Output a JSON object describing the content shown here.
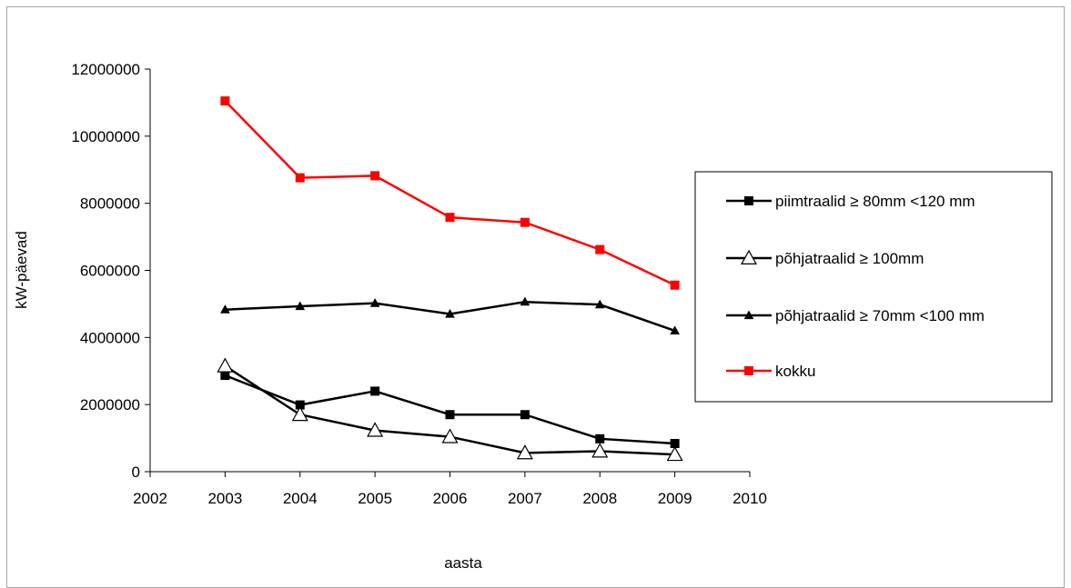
{
  "chart_data": {
    "type": "line",
    "xlabel": "aasta",
    "ylabel": "kW-päevad",
    "xlim": [
      2002,
      2010
    ],
    "ylim": [
      0,
      12000000
    ],
    "x_ticks": [
      "2002",
      "2003",
      "2004",
      "2005",
      "2006",
      "2007",
      "2008",
      "2009",
      "2010"
    ],
    "y_ticks": [
      "0",
      "2000000",
      "4000000",
      "6000000",
      "8000000",
      "10000000",
      "12000000"
    ],
    "grid": false,
    "legend_position": "right",
    "x": [
      2003,
      2004,
      2005,
      2006,
      2007,
      2008,
      2009
    ],
    "series": [
      {
        "name": "piimtraalid  ≥ 80mm <120 mm",
        "marker": "square",
        "color": "#000000",
        "values": [
          2870000,
          1990000,
          2400000,
          1700000,
          1700000,
          980000,
          840000
        ]
      },
      {
        "name": "põhjatraalid ≥ 100mm",
        "marker": "triangle-open",
        "color": "#000000",
        "values": [
          3150000,
          1700000,
          1230000,
          1040000,
          560000,
          610000,
          510000
        ]
      },
      {
        "name": "põhjatraalid ≥ 70mm <100 mm",
        "marker": "triangle-filled",
        "color": "#000000",
        "values": [
          4830000,
          4930000,
          5020000,
          4700000,
          5060000,
          4980000,
          4200000
        ]
      },
      {
        "name": "kokku",
        "marker": "square",
        "color": "#ff0000",
        "values": [
          11050000,
          8760000,
          8820000,
          7580000,
          7430000,
          6620000,
          5560000
        ]
      }
    ]
  }
}
